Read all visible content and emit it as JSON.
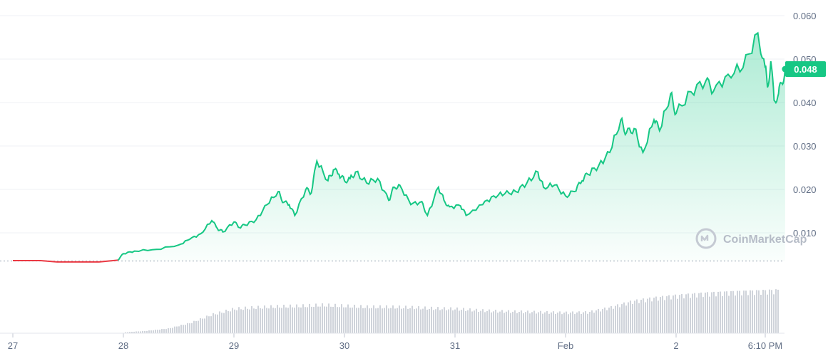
{
  "chart_data": {
    "type": "area",
    "title": "",
    "xlabel": "",
    "ylabel": "",
    "ylim": [
      0.0,
      0.06
    ],
    "y_ticks": [
      "0.010",
      "0.020",
      "0.030",
      "0.040",
      "0.050",
      "0.060"
    ],
    "y_tick_values": [
      0.01,
      0.02,
      0.03,
      0.04,
      0.05,
      0.06
    ],
    "x_ticks": [
      "27",
      "28",
      "29",
      "30",
      "31",
      "Feb",
      "2",
      "6:10 PM"
    ],
    "x_tick_days": [
      0,
      1,
      2,
      3,
      4,
      5,
      6,
      6.6
    ],
    "x_range_days": [
      0,
      6.85
    ],
    "baseline": 0.0035,
    "current_price_label": "0.048",
    "current_price": 0.0477,
    "colors": {
      "up": "#16c784",
      "down": "#ea3943",
      "price_label_bg": "#16c784",
      "volume": "#cfd3da",
      "grid": "#eff2f5"
    },
    "watermark": "CoinMarketCap",
    "price_series": {
      "x_days": [
        0,
        0.25,
        0.4,
        0.6,
        0.78,
        0.95,
        1.0,
        1.1,
        1.3,
        1.5,
        1.6,
        1.7,
        1.8,
        1.85,
        1.9,
        2.0,
        2.05,
        2.1,
        2.2,
        2.3,
        2.4,
        2.45,
        2.5,
        2.55,
        2.65,
        2.7,
        2.75,
        2.85,
        2.9,
        2.95,
        3.0,
        3.05,
        3.1,
        3.2,
        3.3,
        3.4,
        3.45,
        3.5,
        3.6,
        3.7,
        3.75,
        3.85,
        3.9,
        3.95,
        4.05,
        4.1,
        4.25,
        4.35,
        4.45,
        4.55,
        4.65,
        4.75,
        4.8,
        4.9,
        5.0,
        5.08,
        5.15,
        5.2,
        5.3,
        5.4,
        5.5,
        5.55,
        5.62,
        5.7,
        5.8,
        5.85,
        5.95,
        6.0,
        6.1,
        6.2,
        6.25,
        6.35,
        6.45,
        6.55,
        6.6,
        6.62,
        6.65,
        6.68,
        6.72,
        6.75,
        6.78
      ],
      "values": [
        0.0036,
        0.0036,
        0.0033,
        0.0033,
        0.0033,
        0.0037,
        0.0052,
        0.0058,
        0.0062,
        0.0072,
        0.0085,
        0.0098,
        0.0128,
        0.011,
        0.0102,
        0.0125,
        0.0112,
        0.0118,
        0.013,
        0.0165,
        0.0195,
        0.017,
        0.0165,
        0.014,
        0.02,
        0.0192,
        0.0265,
        0.022,
        0.0245,
        0.0235,
        0.022,
        0.0225,
        0.024,
        0.0215,
        0.0225,
        0.0175,
        0.0205,
        0.021,
        0.0165,
        0.0172,
        0.014,
        0.0205,
        0.0175,
        0.016,
        0.0162,
        0.014,
        0.0165,
        0.0185,
        0.019,
        0.0195,
        0.0215,
        0.024,
        0.0205,
        0.021,
        0.0185,
        0.0195,
        0.022,
        0.0235,
        0.0255,
        0.0285,
        0.036,
        0.033,
        0.034,
        0.0285,
        0.036,
        0.0335,
        0.042,
        0.0375,
        0.0425,
        0.045,
        0.0425,
        0.0465,
        0.048,
        0.056,
        0.048,
        0.0435,
        0.0495,
        0.0405,
        0.042,
        0.0445,
        0.0477
      ]
    },
    "volume_series": {
      "x_days": [
        1.0,
        1.2,
        1.4,
        1.6,
        1.8,
        2.0,
        2.2,
        2.4,
        2.6,
        2.8,
        3.0,
        3.2,
        3.4,
        3.6,
        3.8,
        4.0,
        4.2,
        4.4,
        4.6,
        4.8,
        5.0,
        5.2,
        5.4,
        5.6,
        5.8,
        6.0,
        6.2,
        6.4,
        6.6,
        6.8
      ],
      "values": [
        2,
        5,
        10,
        22,
        40,
        52,
        55,
        57,
        58,
        60,
        58,
        56,
        56,
        55,
        53,
        52,
        49,
        47,
        46,
        45,
        44,
        45,
        55,
        68,
        75,
        80,
        85,
        88,
        90,
        92
      ]
    }
  }
}
